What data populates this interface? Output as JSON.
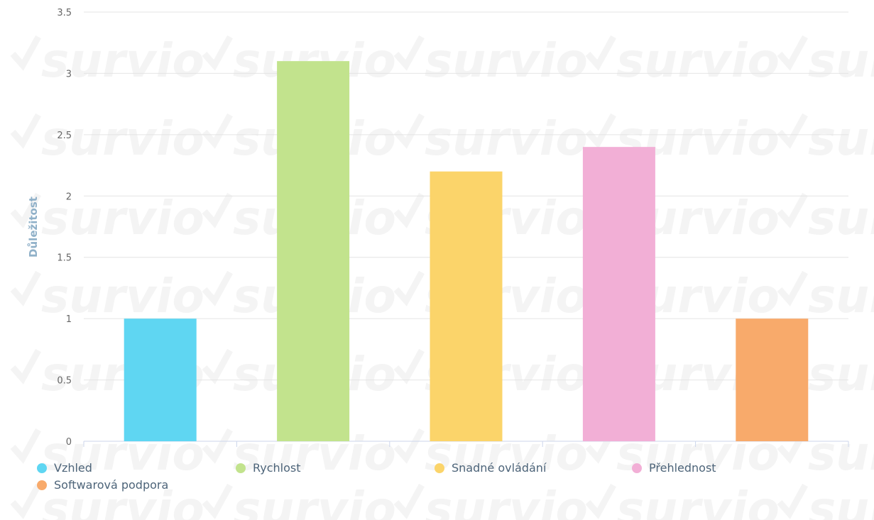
{
  "chart_data": {
    "type": "bar",
    "categories": [
      "Vzhled",
      "Rychlost",
      "Snadné ovládání",
      "Přehlednost",
      "Softwarová podpora"
    ],
    "values": [
      1,
      3.1,
      2.2,
      2.4,
      1
    ],
    "colors": [
      "#5fd6f2",
      "#c2e38d",
      "#fbd46a",
      "#f2afd6",
      "#f8aa6b"
    ],
    "ylabel": "Důležitost",
    "ylim": [
      0,
      3.5
    ],
    "yticks": [
      "0",
      "0.5",
      "1",
      "1.5",
      "2",
      "2.5",
      "3",
      "3.5"
    ],
    "grid": true,
    "legend_position": "bottom",
    "watermark": "survio"
  }
}
